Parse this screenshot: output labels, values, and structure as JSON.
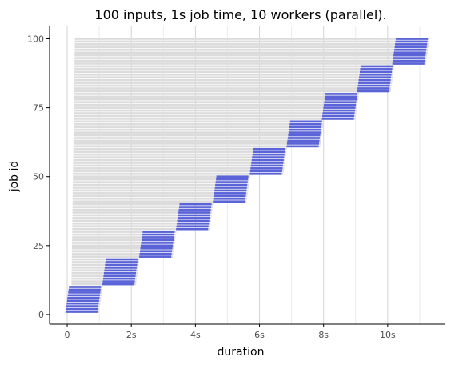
{
  "chart_data": {
    "type": "bar",
    "orientation": "horizontal",
    "title": "100 inputs, 1s job time, 10 workers (parallel).",
    "xlabel": "duration",
    "ylabel": "job id",
    "xlim": [
      -0.55,
      11.8
    ],
    "ylim": [
      -3.5,
      104.5
    ],
    "x_ticks": [
      0,
      2,
      4,
      6,
      8,
      10
    ],
    "x_tick_labels": [
      "0",
      "2s",
      "4s",
      "6s",
      "8s",
      "10s"
    ],
    "y_ticks": [
      0,
      25,
      50,
      75,
      100
    ],
    "y_tick_labels": [
      "0",
      "25",
      "50",
      "75",
      "100"
    ],
    "grid": "vertical",
    "legend": "none",
    "jobs": {
      "count": 100,
      "workers": 10,
      "job_time_s": 1.0,
      "wait_start_s": 0.12,
      "wave_starts_s": [
        0.0,
        1.15,
        2.3,
        3.45,
        4.6,
        5.75,
        6.9,
        8.0,
        9.1,
        10.2
      ],
      "wave_run_s": 1.0
    },
    "colors": {
      "run": "#5a64d8",
      "wait": "#dcdcdc",
      "grid_major": "#d4d4d4",
      "grid_minor": "#ececec",
      "axis": "#000000"
    }
  }
}
